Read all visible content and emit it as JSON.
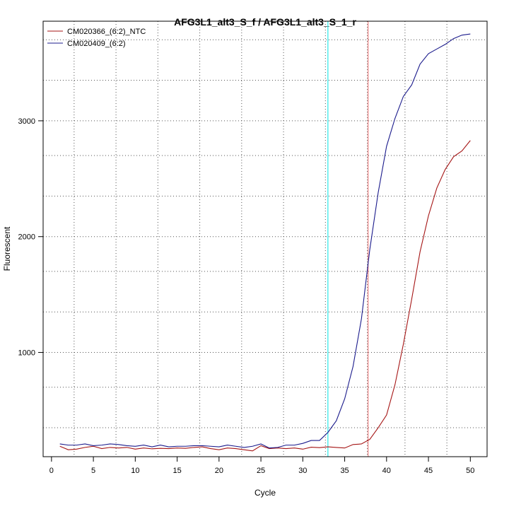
{
  "chart_data": {
    "type": "line",
    "title": "AFG3L1_alt3_S_f / AFG3L1_alt3_S_1_r",
    "xlabel": "Cycle",
    "ylabel": "Fluorescent",
    "xlim": [
      -1,
      52
    ],
    "ylim": [
      100,
      3860
    ],
    "x_ticks": [
      0,
      5,
      10,
      15,
      20,
      25,
      30,
      35,
      40,
      45,
      50
    ],
    "y_ticks": [
      1000,
      2000,
      3000
    ],
    "grid_x": [
      2.7,
      7.7,
      12.7,
      17.7,
      22.7,
      27.7,
      32.7,
      37.7,
      42.2,
      47.2
    ],
    "grid_y": [
      350,
      700,
      1000,
      1350,
      1700,
      2000,
      2350,
      2700,
      3000,
      3350,
      3700
    ],
    "legend_position": "top-left",
    "vlines": [
      {
        "x": 33.0,
        "color": "#00e5e5"
      },
      {
        "x": 37.8,
        "color": "#e87070"
      }
    ],
    "x": [
      1,
      2,
      3,
      4,
      5,
      6,
      7,
      8,
      9,
      10,
      11,
      12,
      13,
      14,
      15,
      16,
      17,
      18,
      19,
      20,
      21,
      22,
      23,
      24,
      25,
      26,
      27,
      28,
      29,
      30,
      31,
      32,
      33,
      34,
      35,
      36,
      37,
      38,
      39,
      40,
      41,
      42,
      43,
      44,
      45,
      46,
      47,
      48,
      49,
      50
    ],
    "series": [
      {
        "name": "CM020366_(6:2)_NTC",
        "color": "#a51515",
        "values": [
          190,
          160,
          165,
          180,
          190,
          170,
          180,
          175,
          180,
          165,
          175,
          168,
          172,
          170,
          175,
          172,
          180,
          185,
          170,
          160,
          175,
          170,
          160,
          150,
          195,
          170,
          175,
          170,
          175,
          165,
          182,
          178,
          185,
          180,
          175,
          205,
          210,
          250,
          350,
          460,
          720,
          1070,
          1460,
          1870,
          2180,
          2420,
          2580,
          2690,
          2740,
          2830
        ]
      },
      {
        "name": "CM020409_(6:2)",
        "color": "#1b1b8c",
        "values": [
          210,
          200,
          200,
          210,
          195,
          200,
          210,
          205,
          195,
          190,
          200,
          185,
          200,
          185,
          190,
          190,
          195,
          195,
          190,
          185,
          200,
          190,
          180,
          190,
          210,
          175,
          180,
          200,
          200,
          215,
          240,
          240,
          310,
          410,
          600,
          880,
          1290,
          1890,
          2380,
          2780,
          3020,
          3210,
          3310,
          3490,
          3580,
          3620,
          3660,
          3710,
          3740,
          3750
        ]
      }
    ]
  }
}
